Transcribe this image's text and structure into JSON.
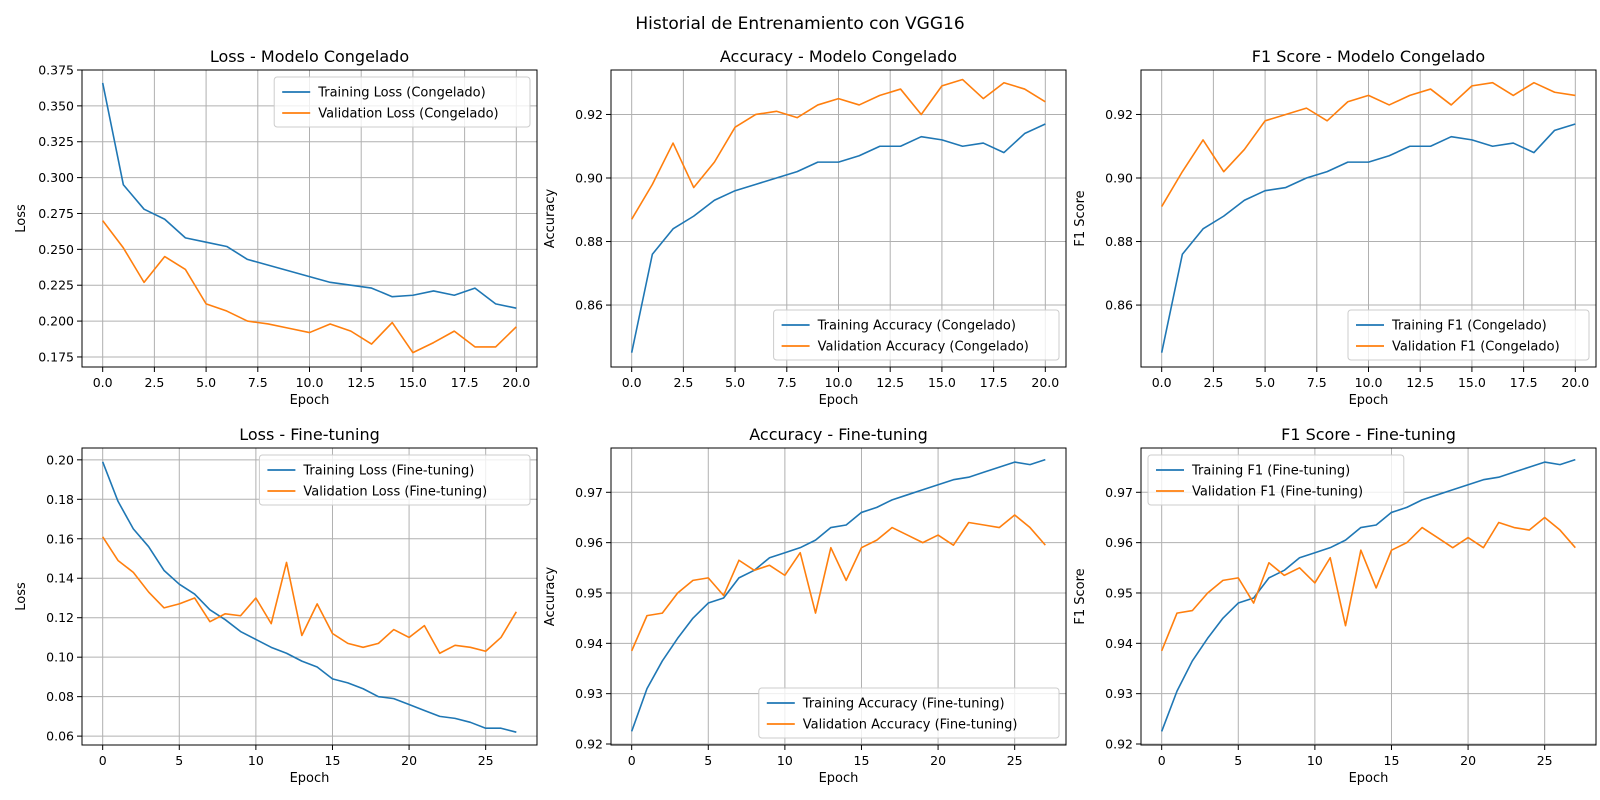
{
  "suptitle": "Historial de Entrenamiento con VGG16",
  "colors": {
    "training": "#1f77b4",
    "validation": "#ff7f0e",
    "grid": "#b0b0b0"
  },
  "chart_data": [
    {
      "type": "line",
      "title": "Loss - Modelo Congelado",
      "xlabel": "Epoch",
      "ylabel": "Loss",
      "xlim": [
        -1,
        21
      ],
      "ylim": [
        0.168,
        0.375
      ],
      "xticks": [
        0,
        2.5,
        5,
        7.5,
        10,
        12.5,
        15,
        17.5,
        20
      ],
      "xtick_labels": [
        "0.0",
        "2.5",
        "5.0",
        "7.5",
        "10.0",
        "12.5",
        "15.0",
        "17.5",
        "20.0"
      ],
      "yticks": [
        0.175,
        0.2,
        0.225,
        0.25,
        0.275,
        0.3,
        0.325,
        0.35,
        0.375
      ],
      "ytick_labels": [
        "0.175",
        "0.200",
        "0.225",
        "0.250",
        "0.275",
        "0.300",
        "0.325",
        "0.350",
        "0.375"
      ],
      "grid": true,
      "legend_position": "upper right",
      "x": [
        0,
        1,
        2,
        3,
        4,
        5,
        6,
        7,
        8,
        9,
        10,
        11,
        12,
        13,
        14,
        15,
        16,
        17,
        18,
        19,
        20
      ],
      "series": [
        {
          "name": "Training Loss (Congelado)",
          "color": "#1f77b4",
          "values": [
            0.366,
            0.295,
            0.278,
            0.271,
            0.258,
            0.255,
            0.252,
            0.243,
            0.239,
            0.235,
            0.231,
            0.227,
            0.225,
            0.223,
            0.217,
            0.218,
            0.221,
            0.218,
            0.223,
            0.212,
            0.209
          ]
        },
        {
          "name": "Validation Loss (Congelado)",
          "color": "#ff7f0e",
          "values": [
            0.27,
            0.251,
            0.227,
            0.245,
            0.236,
            0.212,
            0.207,
            0.2,
            0.198,
            0.195,
            0.192,
            0.198,
            0.193,
            0.184,
            0.199,
            0.178,
            0.185,
            0.193,
            0.182,
            0.182,
            0.196
          ]
        }
      ]
    },
    {
      "type": "line",
      "title": "Accuracy - Modelo Congelado",
      "xlabel": "Epoch",
      "ylabel": "Accuracy",
      "xlim": [
        -1,
        21
      ],
      "ylim": [
        0.8405,
        0.934
      ],
      "xticks": [
        0,
        2.5,
        5,
        7.5,
        10,
        12.5,
        15,
        17.5,
        20
      ],
      "xtick_labels": [
        "0.0",
        "2.5",
        "5.0",
        "7.5",
        "10.0",
        "12.5",
        "15.0",
        "17.5",
        "20.0"
      ],
      "yticks": [
        0.86,
        0.88,
        0.9,
        0.92
      ],
      "ytick_labels": [
        "0.86",
        "0.88",
        "0.90",
        "0.92"
      ],
      "grid": true,
      "legend_position": "lower right",
      "x": [
        0,
        1,
        2,
        3,
        4,
        5,
        6,
        7,
        8,
        9,
        10,
        11,
        12,
        13,
        14,
        15,
        16,
        17,
        18,
        19,
        20
      ],
      "series": [
        {
          "name": "Training Accuracy (Congelado)",
          "color": "#1f77b4",
          "values": [
            0.845,
            0.876,
            0.884,
            0.888,
            0.893,
            0.896,
            0.898,
            0.9,
            0.902,
            0.905,
            0.905,
            0.907,
            0.91,
            0.91,
            0.913,
            0.912,
            0.91,
            0.911,
            0.908,
            0.914,
            0.917
          ]
        },
        {
          "name": "Validation Accuracy (Congelado)",
          "color": "#ff7f0e",
          "values": [
            0.887,
            0.898,
            0.911,
            0.897,
            0.905,
            0.916,
            0.92,
            0.921,
            0.919,
            0.923,
            0.925,
            0.923,
            0.926,
            0.928,
            0.92,
            0.929,
            0.931,
            0.925,
            0.93,
            0.928,
            0.924
          ]
        }
      ]
    },
    {
      "type": "line",
      "title": "F1 Score - Modelo Congelado",
      "xlabel": "Epoch",
      "ylabel": "F1 Score",
      "xlim": [
        -1,
        21
      ],
      "ylim": [
        0.8405,
        0.934
      ],
      "xticks": [
        0,
        2.5,
        5,
        7.5,
        10,
        12.5,
        15,
        17.5,
        20
      ],
      "xtick_labels": [
        "0.0",
        "2.5",
        "5.0",
        "7.5",
        "10.0",
        "12.5",
        "15.0",
        "17.5",
        "20.0"
      ],
      "yticks": [
        0.86,
        0.88,
        0.9,
        0.92
      ],
      "ytick_labels": [
        "0.86",
        "0.88",
        "0.90",
        "0.92"
      ],
      "grid": true,
      "legend_position": "lower right",
      "x": [
        0,
        1,
        2,
        3,
        4,
        5,
        6,
        7,
        8,
        9,
        10,
        11,
        12,
        13,
        14,
        15,
        16,
        17,
        18,
        19,
        20
      ],
      "series": [
        {
          "name": "Training F1 (Congelado)",
          "color": "#1f77b4",
          "values": [
            0.845,
            0.876,
            0.884,
            0.888,
            0.893,
            0.896,
            0.897,
            0.9,
            0.902,
            0.905,
            0.905,
            0.907,
            0.91,
            0.91,
            0.913,
            0.912,
            0.91,
            0.911,
            0.908,
            0.915,
            0.917
          ]
        },
        {
          "name": "Validation F1 (Congelado)",
          "color": "#ff7f0e",
          "values": [
            0.891,
            0.902,
            0.912,
            0.902,
            0.909,
            0.918,
            0.92,
            0.922,
            0.918,
            0.924,
            0.926,
            0.923,
            0.926,
            0.928,
            0.923,
            0.929,
            0.93,
            0.926,
            0.93,
            0.927,
            0.926
          ]
        }
      ]
    },
    {
      "type": "line",
      "title": "Loss - Fine-tuning",
      "xlabel": "Epoch",
      "ylabel": "Loss",
      "xlim": [
        -1.35,
        28.35
      ],
      "ylim": [
        0.0555,
        0.206
      ],
      "xticks": [
        0,
        5,
        10,
        15,
        20,
        25
      ],
      "xtick_labels": [
        "0",
        "5",
        "10",
        "15",
        "20",
        "25"
      ],
      "yticks": [
        0.06,
        0.08,
        0.1,
        0.12,
        0.14,
        0.16,
        0.18,
        0.2
      ],
      "ytick_labels": [
        "0.06",
        "0.08",
        "0.10",
        "0.12",
        "0.14",
        "0.16",
        "0.18",
        "0.20"
      ],
      "grid": true,
      "legend_position": "upper right",
      "x": [
        0,
        1,
        2,
        3,
        4,
        5,
        6,
        7,
        8,
        9,
        10,
        11,
        12,
        13,
        14,
        15,
        16,
        17,
        18,
        19,
        20,
        21,
        22,
        23,
        24,
        25,
        26,
        27
      ],
      "series": [
        {
          "name": "Training Loss (Fine-tuning)",
          "color": "#1f77b4",
          "values": [
            0.199,
            0.179,
            0.165,
            0.156,
            0.144,
            0.137,
            0.132,
            0.124,
            0.119,
            0.113,
            0.109,
            0.105,
            0.102,
            0.098,
            0.095,
            0.089,
            0.087,
            0.084,
            0.08,
            0.079,
            0.076,
            0.073,
            0.07,
            0.069,
            0.067,
            0.064,
            0.064,
            0.062
          ]
        },
        {
          "name": "Validation Loss (Fine-tuning)",
          "color": "#ff7f0e",
          "values": [
            0.161,
            0.149,
            0.143,
            0.133,
            0.125,
            0.127,
            0.13,
            0.118,
            0.122,
            0.121,
            0.13,
            0.117,
            0.148,
            0.111,
            0.127,
            0.112,
            0.107,
            0.105,
            0.107,
            0.114,
            0.11,
            0.116,
            0.102,
            0.106,
            0.105,
            0.103,
            0.11,
            0.123
          ]
        }
      ]
    },
    {
      "type": "line",
      "title": "Accuracy - Fine-tuning",
      "xlabel": "Epoch",
      "ylabel": "Accuracy",
      "xlim": [
        -1.35,
        28.35
      ],
      "ylim": [
        0.9198,
        0.9788
      ],
      "xticks": [
        0,
        5,
        10,
        15,
        20,
        25
      ],
      "xtick_labels": [
        "0",
        "5",
        "10",
        "15",
        "20",
        "25"
      ],
      "yticks": [
        0.92,
        0.93,
        0.94,
        0.95,
        0.96,
        0.97
      ],
      "ytick_labels": [
        "0.92",
        "0.93",
        "0.94",
        "0.95",
        "0.96",
        "0.97"
      ],
      "grid": true,
      "legend_position": "lower right",
      "x": [
        0,
        1,
        2,
        3,
        4,
        5,
        6,
        7,
        8,
        9,
        10,
        11,
        12,
        13,
        14,
        15,
        16,
        17,
        18,
        19,
        20,
        21,
        22,
        23,
        24,
        25,
        26,
        27
      ],
      "series": [
        {
          "name": "Training Accuracy (Fine-tuning)",
          "color": "#1f77b4",
          "values": [
            0.9225,
            0.931,
            0.9365,
            0.941,
            0.945,
            0.948,
            0.949,
            0.953,
            0.9545,
            0.957,
            0.958,
            0.959,
            0.9605,
            0.963,
            0.9635,
            0.966,
            0.967,
            0.9685,
            0.9695,
            0.9705,
            0.9715,
            0.9725,
            0.973,
            0.974,
            0.975,
            0.976,
            0.9755,
            0.9765
          ]
        },
        {
          "name": "Validation Accuracy (Fine-tuning)",
          "color": "#ff7f0e",
          "values": [
            0.9385,
            0.9455,
            0.946,
            0.95,
            0.9525,
            0.953,
            0.9495,
            0.9565,
            0.9545,
            0.9555,
            0.9535,
            0.958,
            0.946,
            0.959,
            0.9525,
            0.959,
            0.9605,
            0.963,
            0.9615,
            0.96,
            0.9615,
            0.9595,
            0.964,
            0.9635,
            0.963,
            0.9655,
            0.963,
            0.9595
          ]
        }
      ]
    },
    {
      "type": "line",
      "title": "F1 Score - Fine-tuning",
      "xlabel": "Epoch",
      "ylabel": "F1 Score",
      "xlim": [
        -1.35,
        28.35
      ],
      "ylim": [
        0.9198,
        0.9788
      ],
      "xticks": [
        0,
        5,
        10,
        15,
        20,
        25
      ],
      "xtick_labels": [
        "0",
        "5",
        "10",
        "15",
        "20",
        "25"
      ],
      "yticks": [
        0.92,
        0.93,
        0.94,
        0.95,
        0.96,
        0.97
      ],
      "ytick_labels": [
        "0.92",
        "0.93",
        "0.94",
        "0.95",
        "0.96",
        "0.97"
      ],
      "grid": true,
      "legend_position": "upper left",
      "x": [
        0,
        1,
        2,
        3,
        4,
        5,
        6,
        7,
        8,
        9,
        10,
        11,
        12,
        13,
        14,
        15,
        16,
        17,
        18,
        19,
        20,
        21,
        22,
        23,
        24,
        25,
        26,
        27
      ],
      "series": [
        {
          "name": "Training F1 (Fine-tuning)",
          "color": "#1f77b4",
          "values": [
            0.9225,
            0.9305,
            0.9365,
            0.941,
            0.945,
            0.948,
            0.949,
            0.953,
            0.9545,
            0.957,
            0.958,
            0.959,
            0.9605,
            0.963,
            0.9635,
            0.966,
            0.967,
            0.9685,
            0.9695,
            0.9705,
            0.9715,
            0.9725,
            0.973,
            0.974,
            0.975,
            0.976,
            0.9755,
            0.9765
          ]
        },
        {
          "name": "Validation F1 (Fine-tuning)",
          "color": "#ff7f0e",
          "values": [
            0.9385,
            0.946,
            0.9465,
            0.95,
            0.9525,
            0.953,
            0.948,
            0.956,
            0.9535,
            0.955,
            0.952,
            0.957,
            0.9435,
            0.9585,
            0.951,
            0.9585,
            0.96,
            0.963,
            0.961,
            0.959,
            0.961,
            0.959,
            0.964,
            0.963,
            0.9625,
            0.965,
            0.9625,
            0.959
          ]
        }
      ]
    }
  ]
}
